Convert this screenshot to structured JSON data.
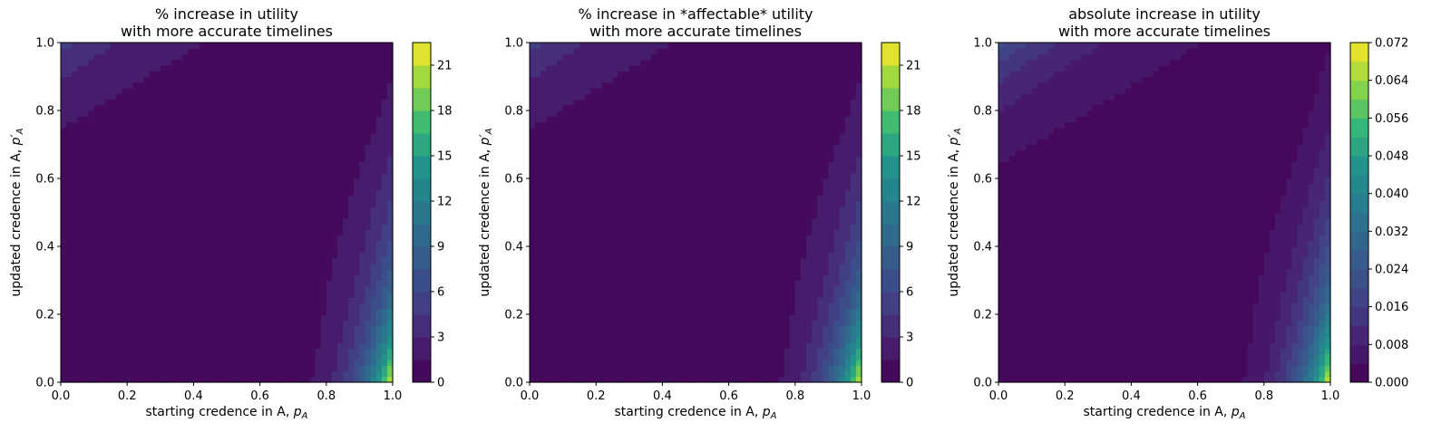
{
  "chart_data": [
    {
      "type": "contour",
      "title_line1": "% increase in utility",
      "title_line2": "with more accurate timelines",
      "xlabel": "starting credence in A, p_A",
      "ylabel": "updated credence in A, p'_A",
      "xlim": [
        0,
        1
      ],
      "ylim": [
        0,
        1
      ],
      "xticks": [
        "0.0",
        "0.2",
        "0.4",
        "0.6",
        "0.8",
        "1.0"
      ],
      "yticks": [
        "0.0",
        "0.2",
        "0.4",
        "0.6",
        "0.8",
        "1.0"
      ],
      "colorbar_range": [
        0,
        22.5
      ],
      "colorbar_levels": 15,
      "colorbar_ticks": [
        "0",
        "3",
        "6",
        "9",
        "12",
        "15",
        "18",
        "21"
      ],
      "colorbar_tick_values": [
        0,
        3,
        6,
        9,
        12,
        15,
        18,
        21
      ],
      "max_value_approx": 22,
      "colormap": "viridis"
    },
    {
      "type": "contour",
      "title_line1": "% increase in *affectable* utility",
      "title_line2": "with more accurate timelines",
      "xlabel": "starting credence in A, p_A",
      "ylabel": "updated credence in A, p'_A",
      "xlim": [
        0,
        1
      ],
      "ylim": [
        0,
        1
      ],
      "xticks": [
        "0.0",
        "0.2",
        "0.4",
        "0.6",
        "0.8",
        "1.0"
      ],
      "yticks": [
        "0.0",
        "0.2",
        "0.4",
        "0.6",
        "0.8",
        "1.0"
      ],
      "colorbar_range": [
        0,
        22.5
      ],
      "colorbar_levels": 15,
      "colorbar_ticks": [
        "0",
        "3",
        "6",
        "9",
        "12",
        "15",
        "18",
        "21"
      ],
      "colorbar_tick_values": [
        0,
        3,
        6,
        9,
        12,
        15,
        18,
        21
      ],
      "max_value_approx": 22,
      "colormap": "viridis"
    },
    {
      "type": "contour",
      "title_line1": "absolute increase in utility",
      "title_line2": "with more accurate timelines",
      "xlabel": "starting credence in A, p_A",
      "ylabel": "updated credence in A, p'_A",
      "xlim": [
        0,
        1
      ],
      "ylim": [
        0,
        1
      ],
      "xticks": [
        "0.0",
        "0.2",
        "0.4",
        "0.6",
        "0.8",
        "1.0"
      ],
      "yticks": [
        "0.0",
        "0.2",
        "0.4",
        "0.6",
        "0.8",
        "1.0"
      ],
      "colorbar_range": [
        0,
        0.072
      ],
      "colorbar_levels": 18,
      "colorbar_ticks": [
        "0.000",
        "0.008",
        "0.016",
        "0.024",
        "0.032",
        "0.040",
        "0.048",
        "0.056",
        "0.064",
        "0.072"
      ],
      "colorbar_tick_values": [
        0,
        0.008,
        0.016,
        0.024,
        0.032,
        0.04,
        0.048,
        0.056,
        0.064,
        0.072
      ],
      "max_value_approx": 0.071,
      "colormap": "viridis"
    }
  ]
}
